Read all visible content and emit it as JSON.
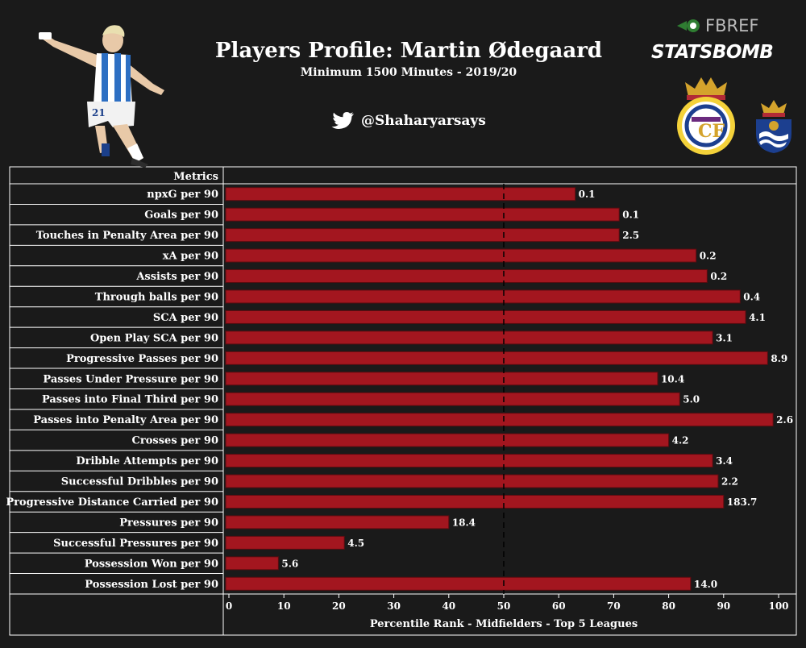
{
  "header": {
    "title": "Players Profile: Martin Ødegaard",
    "subtitle": "Minimum 1500 Minutes - 2019/20",
    "twitter_handle": "@Shaharyarsays",
    "fbref_logo": "FBREF",
    "statsbomb_logo": "STATSBOMB"
  },
  "icons": {
    "player_photo": "player-photo",
    "twitter": "twitter-bird-icon",
    "real_madrid_crest": "real-madrid-crest",
    "real_sociedad_crest": "real-sociedad-crest"
  },
  "colors": {
    "background": "#1a1a1a",
    "bar": "#a3161f",
    "bar_edge": "#5a0c10",
    "text": "#ffffff"
  },
  "chart_data": {
    "type": "bar",
    "orientation": "horizontal",
    "column_header": "Metrics",
    "categories": [
      "npxG per 90",
      "Goals per 90",
      "Touches in Penalty Area per 90",
      "xA per 90",
      "Assists per 90",
      "Through balls per 90",
      "SCA per 90",
      "Open Play SCA per 90",
      "Progressive Passes per 90",
      "Passes Under Pressure per 90",
      "Passes into Final Third per 90",
      "Passes into Penalty Area per 90",
      "Crosses per 90",
      "Dribble Attempts per 90",
      "Successful Dribbles per 90",
      "Progressive Distance Carried per 90",
      "Pressures per 90",
      "Successful Pressures per 90",
      "Possession Won per 90",
      "Possession Lost per 90"
    ],
    "percentiles": [
      63,
      71,
      71,
      85,
      87,
      93,
      94,
      88,
      98,
      78,
      82,
      99,
      80,
      88,
      89,
      90,
      40,
      21,
      9,
      84
    ],
    "data_labels": [
      "0.1",
      "0.1",
      "2.5",
      "0.2",
      "0.2",
      "0.4",
      "4.1",
      "3.1",
      "8.9",
      "10.4",
      "5.0",
      "2.6",
      "4.2",
      "3.4",
      "2.2",
      "183.7",
      "18.4",
      "4.5",
      "5.6",
      "14.0"
    ],
    "xlabel": "Percentile Rank - Midfielders - Top 5 Leagues",
    "xlim": [
      0,
      100
    ],
    "xticks": [
      "0",
      "10",
      "20",
      "30",
      "40",
      "50",
      "60",
      "70",
      "80",
      "90",
      "100"
    ],
    "reference_line": 50,
    "grid": false
  }
}
